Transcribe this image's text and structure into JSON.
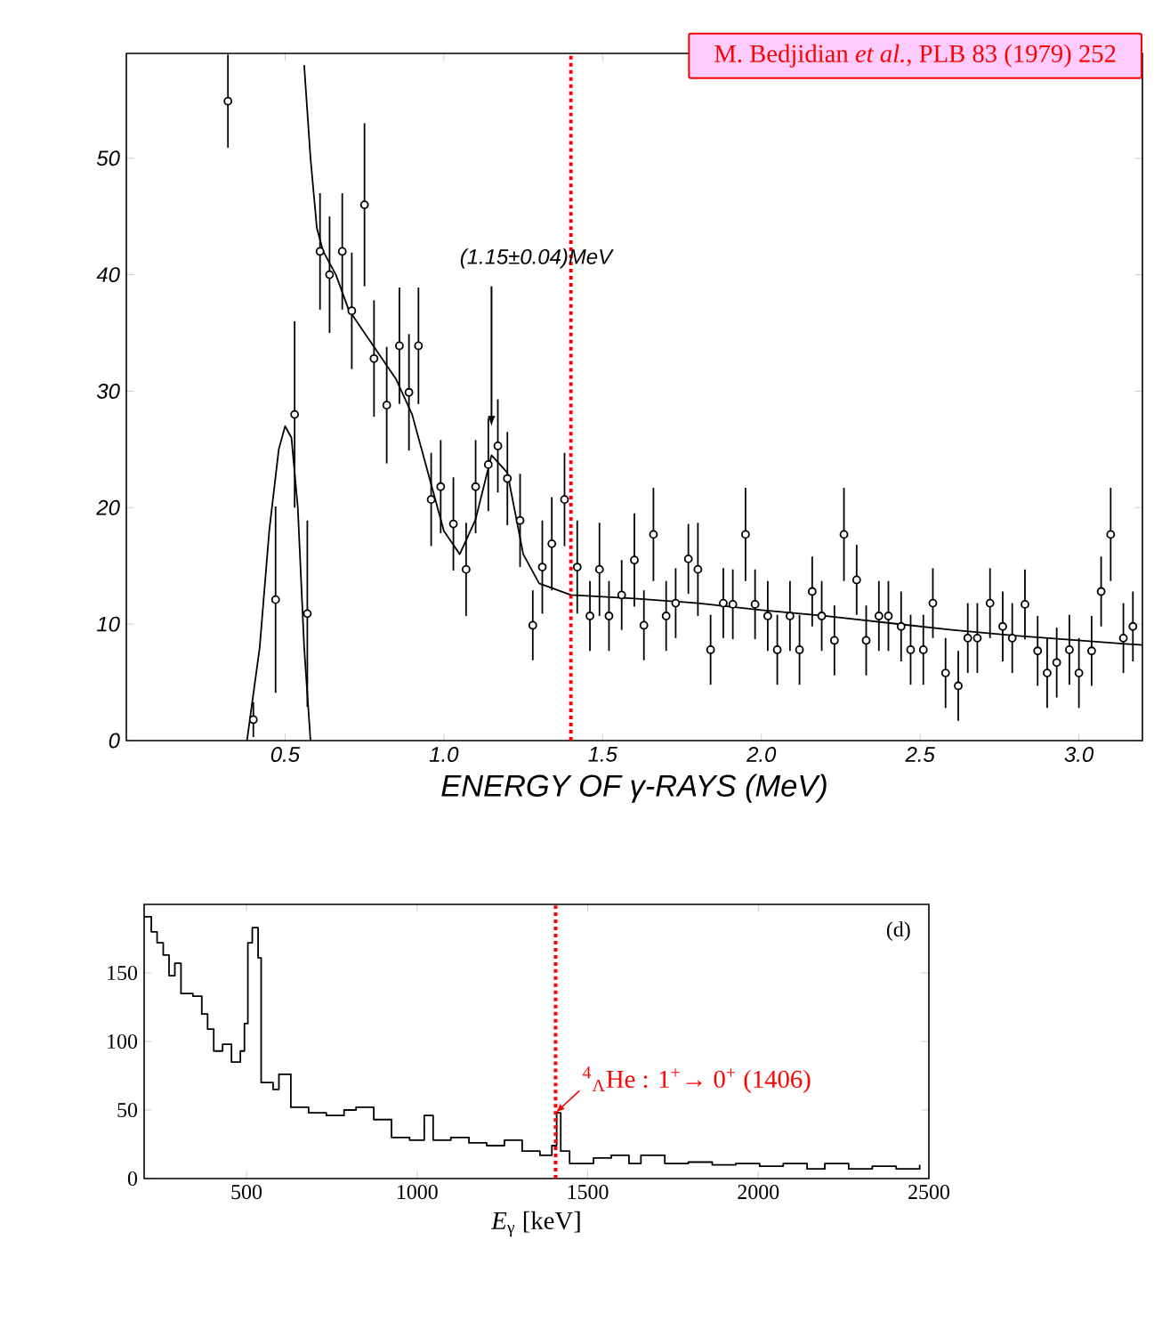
{
  "chart_data": [
    {
      "type": "scatter",
      "xlabel": "ENERGY OF γ-RAYS (MeV)",
      "xlim": [
        0,
        3.2
      ],
      "ylim": [
        0,
        59
      ],
      "xticks": [
        {
          "value": 0.5,
          "label": "0.5"
        },
        {
          "value": 1.0,
          "label": "1.0"
        },
        {
          "value": 1.5,
          "label": "1.5"
        },
        {
          "value": 2.0,
          "label": "2.0"
        },
        {
          "value": 2.5,
          "label": "2.5"
        },
        {
          "value": 3.0,
          "label": "3.0"
        }
      ],
      "yticks": [
        0,
        10,
        20,
        30,
        40,
        50
      ],
      "series": [
        {
          "type": "scatter",
          "color": "#000000",
          "marker": "circle",
          "x": [
            0.32,
            0.4,
            0.47,
            0.53,
            0.57,
            0.61,
            0.64,
            0.68,
            0.71,
            0.75,
            0.78,
            0.82,
            0.86,
            0.89,
            0.92,
            0.96,
            0.99,
            1.03,
            1.07,
            1.1,
            1.14,
            1.17,
            1.2,
            1.24,
            1.28,
            1.31,
            1.34,
            1.38,
            1.42,
            1.46,
            1.49,
            1.52,
            1.56,
            1.6,
            1.63,
            1.66,
            1.7,
            1.73,
            1.77,
            1.8,
            1.84,
            1.88,
            1.91,
            1.95,
            1.98,
            2.02,
            2.05,
            2.09,
            2.12,
            2.16,
            2.19,
            2.23,
            2.26,
            2.3,
            2.33,
            2.37,
            2.4,
            2.44,
            2.47,
            2.51,
            2.54,
            2.58,
            2.62,
            2.65,
            2.68,
            2.72,
            2.76,
            2.79,
            2.83,
            2.87,
            2.9,
            2.93,
            2.97,
            3.0,
            3.04,
            3.07,
            3.1,
            3.14,
            3.17
          ],
          "values": [
            54.9,
            1.8,
            12.1,
            28.0,
            10.9,
            42.0,
            40.0,
            42.0,
            36.9,
            46.0,
            32.8,
            28.8,
            33.9,
            29.9,
            33.9,
            20.7,
            21.8,
            18.6,
            14.7,
            21.8,
            23.7,
            25.3,
            22.5,
            18.9,
            9.9,
            14.9,
            16.9,
            20.7,
            14.9,
            10.7,
            14.7,
            10.7,
            12.5,
            15.5,
            9.9,
            17.7,
            10.7,
            11.8,
            15.6,
            14.7,
            7.8,
            11.8,
            11.7,
            17.7,
            11.7,
            10.7,
            7.8,
            10.7,
            7.8,
            12.8,
            10.7,
            8.6,
            17.7,
            13.8,
            8.6,
            10.7,
            10.7,
            9.8,
            7.8,
            7.8,
            11.8,
            5.8,
            4.7,
            8.8,
            8.8,
            11.8,
            9.8,
            8.8,
            11.7,
            7.7,
            5.8,
            6.7,
            7.8,
            5.8,
            7.7,
            12.8,
            17.7,
            8.8,
            9.8
          ],
          "errors": [
            4,
            1.5,
            8,
            8,
            8,
            5,
            5,
            5,
            5,
            7,
            5,
            5,
            5,
            5,
            5,
            4,
            4,
            4,
            4,
            4,
            4,
            4,
            4,
            4,
            3,
            4,
            4,
            4,
            4,
            3,
            4,
            3,
            3,
            4,
            3,
            4,
            3,
            3,
            3,
            4,
            3,
            3,
            3,
            4,
            3,
            3,
            3,
            3,
            3,
            3,
            3,
            3,
            4,
            3,
            3,
            3,
            3,
            3,
            3,
            3,
            3,
            3,
            3,
            3,
            3,
            3,
            3,
            3,
            3,
            3,
            3,
            3,
            3,
            3,
            3,
            3,
            4,
            3,
            3
          ]
        },
        {
          "type": "line",
          "color": "#000000",
          "x": [
            0.38,
            0.42,
            0.45,
            0.48,
            0.5,
            0.52,
            0.54,
            0.56,
            0.58
          ],
          "values": [
            0,
            8,
            18,
            25,
            27,
            26,
            20,
            8,
            0
          ]
        },
        {
          "type": "line",
          "color": "#000000",
          "x": [
            0.56,
            0.58,
            0.6,
            0.62,
            0.66,
            0.7,
            0.75,
            0.8,
            0.85,
            0.9,
            0.95,
            1.0,
            1.05,
            1.1,
            1.15,
            1.2,
            1.25,
            1.3,
            1.4,
            1.6,
            1.8,
            2.0,
            2.2,
            2.4,
            2.6,
            2.8,
            3.0,
            3.2
          ],
          "values": [
            58,
            50,
            44,
            42,
            40,
            37,
            35,
            33,
            31,
            28,
            23,
            18,
            16,
            19,
            24.5,
            23,
            16,
            13.5,
            12.5,
            12.2,
            11.8,
            11.2,
            10.7,
            10.1,
            9.5,
            9.0,
            8.6,
            8.2
          ]
        }
      ],
      "annotations": [
        "M. Bedjidian *et al.*, PLB 83 (1979) 252",
        {
          "text": "(1.15±0.04)MeV",
          "x": 1.15,
          "y": 27
        }
      ],
      "ref_lines": [
        {
          "axis": "x",
          "value": 1.4,
          "color": "#ff0000",
          "line_style": "dotted"
        }
      ]
    },
    {
      "type": "step",
      "xlabel": "*E*$_{γ}$ [keV]",
      "xlim": [
        200,
        2500
      ],
      "ylim": [
        0,
        200
      ],
      "xticks": [
        500,
        1000,
        1500,
        2000,
        2500
      ],
      "yticks": [
        0,
        50,
        100,
        150
      ],
      "color": "#000000",
      "x": [
        200,
        221,
        238,
        256,
        273,
        290,
        308,
        343,
        369,
        386,
        404,
        430,
        456,
        482,
        494,
        504,
        517,
        534,
        543,
        578,
        595,
        630,
        682,
        734,
        786,
        821,
        873,
        925,
        978,
        1021,
        1047,
        1099,
        1152,
        1204,
        1256,
        1308,
        1360,
        1395,
        1409,
        1421,
        1447,
        1517,
        1569,
        1621,
        1656,
        1726,
        1795,
        1865,
        1934,
        2004,
        2073,
        2143,
        2195,
        2265,
        2334,
        2404,
        2473
      ],
      "values": [
        191,
        180,
        172,
        163,
        148,
        157,
        135,
        133,
        120,
        109,
        93,
        98,
        85,
        93,
        113,
        172,
        183,
        161,
        70,
        65,
        76,
        52,
        48,
        46,
        50,
        52,
        43,
        30,
        28,
        46,
        28,
        30,
        26,
        24,
        28,
        20,
        17,
        24,
        48,
        20,
        11,
        15,
        17,
        11,
        17,
        11,
        12,
        10,
        11,
        9,
        11,
        7,
        11,
        7,
        9,
        7,
        10
      ],
      "annotations": [
        "(d)",
        {
          "text": "$^{4}$$_{Λ}$He : 1$^{+}$→ 0$^{+}$ (1406)",
          "x": 1406,
          "y": 48
        }
      ],
      "ref_lines": [
        {
          "axis": "x",
          "value": 1406,
          "color": "#ff0000",
          "line_style": "dotted"
        }
      ]
    }
  ]
}
